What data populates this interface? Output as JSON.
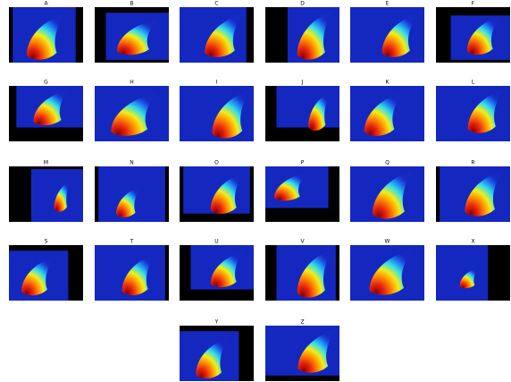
{
  "panels": [
    {
      "label": "A"
    },
    {
      "label": "B"
    },
    {
      "label": "C"
    },
    {
      "label": "D"
    },
    {
      "label": "E"
    },
    {
      "label": "F"
    },
    {
      "label": "G"
    },
    {
      "label": "H"
    },
    {
      "label": "I"
    },
    {
      "label": "J"
    },
    {
      "label": "K"
    },
    {
      "label": "L"
    },
    {
      "label": "M"
    },
    {
      "label": "N"
    },
    {
      "label": "O"
    },
    {
      "label": "P"
    },
    {
      "label": "Q"
    },
    {
      "label": "R"
    },
    {
      "label": "S"
    },
    {
      "label": "T"
    },
    {
      "label": "U"
    },
    {
      "label": "V"
    },
    {
      "label": "W"
    },
    {
      "label": "X"
    },
    {
      "label": "Y"
    },
    {
      "label": "Z"
    }
  ]
}
